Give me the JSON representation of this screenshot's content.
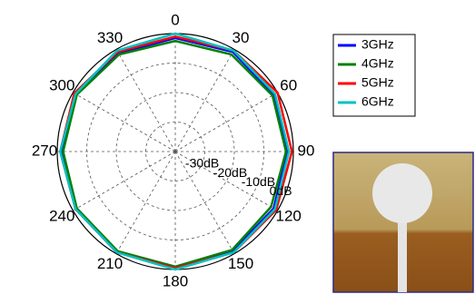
{
  "chart_data": {
    "type": "polar",
    "theta": [
      0,
      30,
      60,
      90,
      120,
      150,
      180,
      210,
      240,
      270,
      300,
      330
    ],
    "thetaticks": [
      0,
      30,
      60,
      90,
      120,
      150,
      180,
      210,
      240,
      270,
      300,
      330
    ],
    "rlim": [
      -40,
      0
    ],
    "rticks": [
      {
        "value": -30,
        "label": "-30dB"
      },
      {
        "value": -20,
        "label": "-20dB"
      },
      {
        "value": -10,
        "label": "-10dB"
      },
      {
        "value": 0,
        "label": "0dB"
      }
    ],
    "series": [
      {
        "name": "3GHz",
        "color": "#0000ff",
        "values": [
          -1.5,
          -1,
          -1.5,
          -2,
          -1.5,
          -1,
          -0.5,
          -0.5,
          -1,
          -1.5,
          -1,
          -1.5
        ]
      },
      {
        "name": "4GHz",
        "color": "#008000",
        "values": [
          -2.5,
          -2,
          -2,
          -2.5,
          -2.5,
          -1.5,
          -1,
          -1,
          -1.5,
          -2,
          -1.5,
          -2
        ]
      },
      {
        "name": "5GHz",
        "color": "#ff0000",
        "values": [
          -1,
          -0.5,
          0,
          -0.5,
          -0.5,
          -0.5,
          -0.5,
          -0.5,
          -1,
          -1,
          -0.5,
          -1
        ]
      },
      {
        "name": "6GHz",
        "color": "#00c0c0",
        "values": [
          0,
          -0.5,
          -1,
          -1.5,
          -1,
          -0.5,
          0,
          -0.5,
          -1,
          -1,
          -1,
          -0.5
        ]
      }
    ],
    "grid": true
  }
}
